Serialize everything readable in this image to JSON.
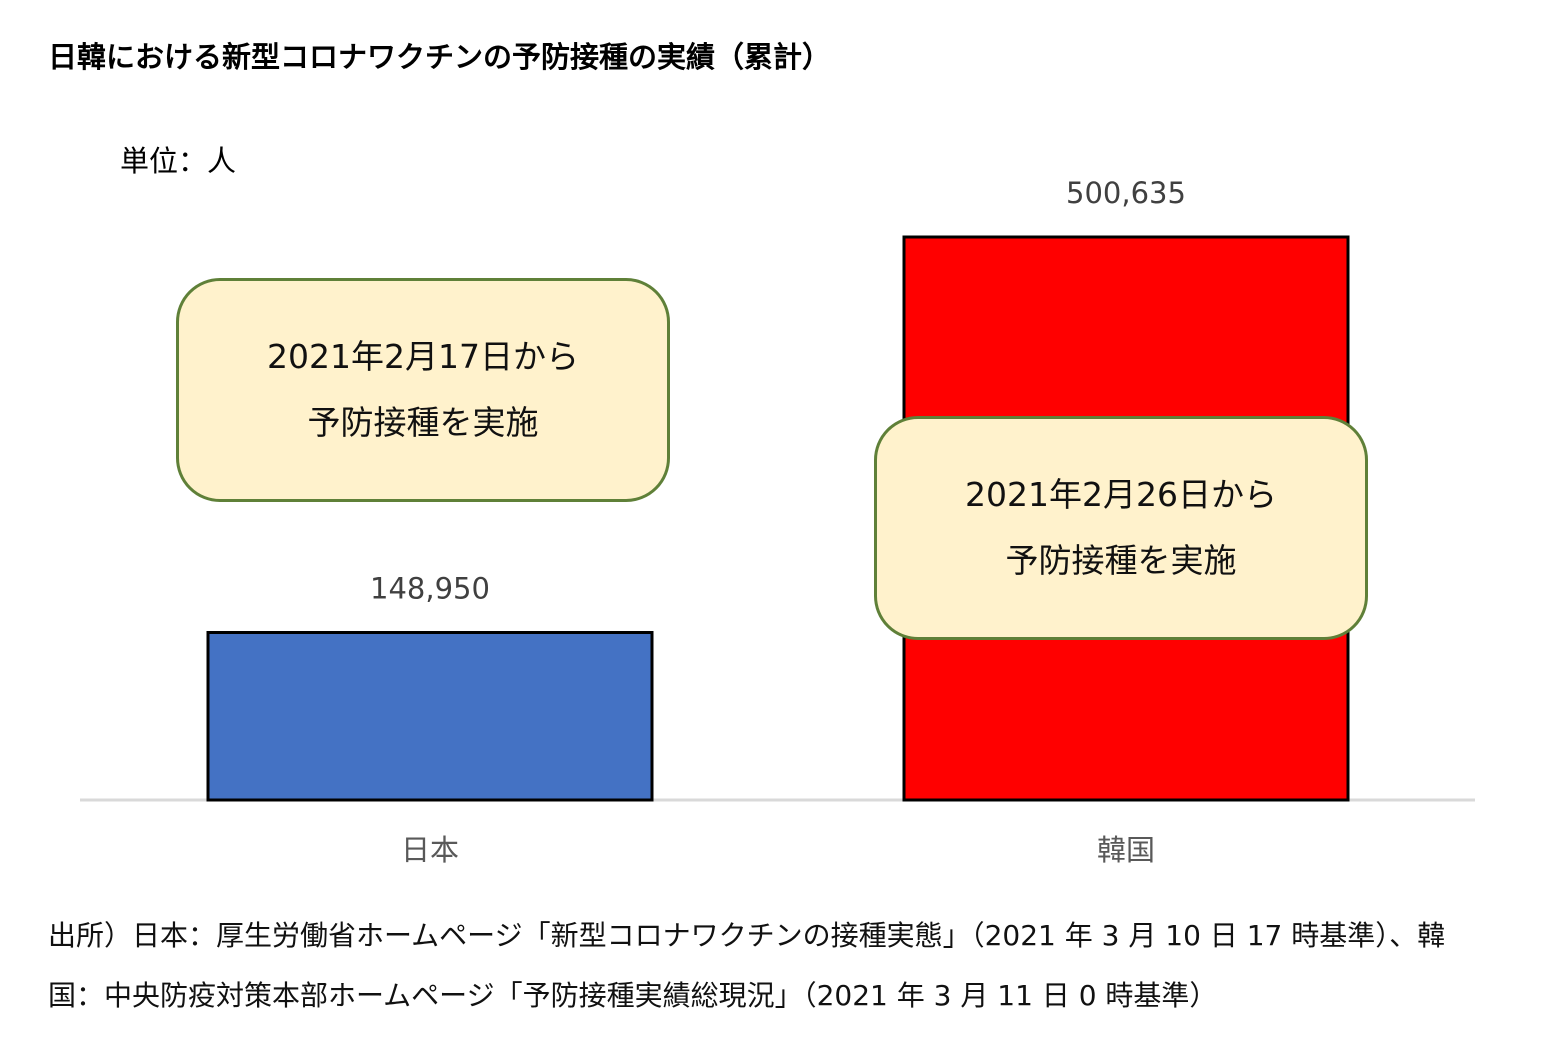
{
  "title": "日韓における新型コロナワクチンの予防接種の実績（累計）",
  "unit_label": "単位：人",
  "colors": {
    "japan_bar": "#4472c4",
    "korea_bar": "#ff0000",
    "callout_fill": "#fff2cc",
    "callout_border": "#5f8038",
    "axis": "#d9d9d9"
  },
  "chart_data": {
    "type": "bar",
    "categories": [
      "日本",
      "韓国"
    ],
    "values": [
      148950,
      500635
    ],
    "value_labels": [
      "148,950",
      "500,635"
    ],
    "title": "日韓における新型コロナワクチンの予防接種の実績（累計）",
    "xlabel": "",
    "ylabel": "単位：人",
    "ylim": [
      0,
      500635
    ],
    "grid": false,
    "legend": "none",
    "colors": [
      "#4472c4",
      "#ff0000"
    ]
  },
  "callouts": {
    "japan": {
      "line1": "2021年2月17日から",
      "line2": "予防接種を実施"
    },
    "korea": {
      "line1": "2021年2月26日から",
      "line2": "予防接種を実施"
    }
  },
  "source": {
    "line1": "出所）日本：厚生労働省ホームページ「新型コロナワクチンの接種実態」（2021 年 3 月 10 日 17 時基準）、韓",
    "line2": "国：中央防疫対策本部ホームページ「予防接種実績総現況」（2021 年 3 月 11 日 0 時基準）"
  }
}
